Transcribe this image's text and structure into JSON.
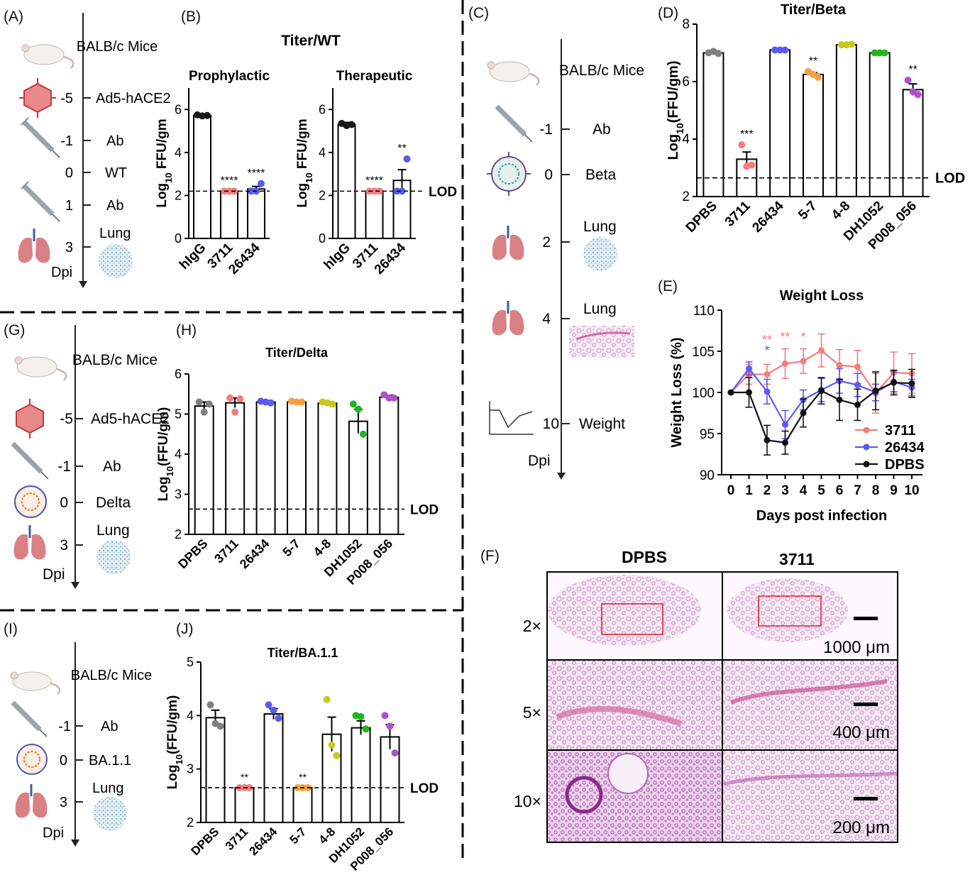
{
  "panels": {
    "A": {
      "label": "(A)",
      "timeline": [
        {
          "day": "",
          "text": "BALB/c Mice",
          "icon": "mouse-icon"
        },
        {
          "day": "-5",
          "text": "Ad5-hACE2",
          "icon": "virus-red-icon"
        },
        {
          "day": "-1",
          "text": "Ab",
          "icon": "syringe-icon"
        },
        {
          "day": "0",
          "text": "WT",
          "icon": ""
        },
        {
          "day": "1",
          "text": "Ab",
          "icon": "syringe-icon"
        },
        {
          "day": "3",
          "text": "Lung",
          "icon": "lung-icon"
        }
      ],
      "axis_label": "Dpi"
    },
    "B": {
      "label": "(B)",
      "title": "Titer/WT"
    },
    "C": {
      "label": "(C)",
      "timeline": [
        {
          "day": "",
          "text": "BALB/c Mice",
          "icon": "mouse-icon"
        },
        {
          "day": "-1",
          "text": "Ab",
          "icon": "syringe-icon"
        },
        {
          "day": "0",
          "text": "Beta",
          "icon": "virus-blue-icon"
        },
        {
          "day": "2",
          "text": "Lung",
          "icon": "lung-icon"
        },
        {
          "day": "4",
          "text": "Lung",
          "icon": "lung-icon"
        },
        {
          "day": "10",
          "text": "Weight",
          "icon": "weight-curve-icon"
        }
      ],
      "axis_label": "Dpi"
    },
    "D": {
      "label": "(D)"
    },
    "E": {
      "label": "(E)"
    },
    "F": {
      "label": "(F)",
      "columns": [
        "DPBS",
        "3711"
      ],
      "rows": [
        "2×",
        "5×",
        "10×"
      ],
      "scale_bars": [
        "1000 μm",
        "400 μm",
        "200 μm"
      ]
    },
    "G": {
      "label": "(G)",
      "timeline": [
        {
          "day": "",
          "text": "BALB/c Mice",
          "icon": "mouse-icon"
        },
        {
          "day": "-5",
          "text": "Ad5-hACE2",
          "icon": "virus-red-icon"
        },
        {
          "day": "-1",
          "text": "Ab",
          "icon": "syringe-icon"
        },
        {
          "day": "0",
          "text": "Delta",
          "icon": "virus-orange-icon"
        },
        {
          "day": "3",
          "text": "Lung",
          "icon": "lung-icon"
        }
      ],
      "axis_label": "Dpi"
    },
    "H": {
      "label": "(H)"
    },
    "I": {
      "label": "(I)",
      "timeline": [
        {
          "day": "",
          "text": "BALB/c Mice",
          "icon": "mouse-icon"
        },
        {
          "day": "-1",
          "text": "Ab",
          "icon": "syringe-icon"
        },
        {
          "day": "0",
          "text": "BA.1.1",
          "icon": "virus-orange-icon"
        },
        {
          "day": "3",
          "text": "Lung",
          "icon": "lung-icon"
        }
      ],
      "axis_label": "Dpi"
    },
    "J": {
      "label": "(J)"
    }
  },
  "chart_data": [
    {
      "id": "B1",
      "type": "bar",
      "title": "Prophylactic",
      "categories": [
        "hIgG",
        "3711",
        "26434"
      ],
      "values": [
        5.72,
        2.2,
        2.3
      ],
      "points": [
        [
          5.75,
          5.7,
          5.72
        ],
        [
          2.2,
          2.2,
          2.2
        ],
        [
          2.2,
          2.2,
          2.55
        ]
      ],
      "errors": [
        0.03,
        0.0,
        0.12
      ],
      "colors": [
        "#1a1a1a",
        "#f47c7c",
        "#5a5af0"
      ],
      "annotations": [
        "",
        "****",
        "****"
      ],
      "ylabel": "Log10 FFU/gm",
      "ylim": [
        0,
        7
      ],
      "yticks": [
        0,
        2,
        4,
        6
      ],
      "lod": 2.2,
      "lod_label": ""
    },
    {
      "id": "B2",
      "type": "bar",
      "title": "Therapeutic",
      "categories": [
        "hIgG",
        "3711",
        "26434"
      ],
      "values": [
        5.3,
        2.2,
        2.7
      ],
      "points": [
        [
          5.35,
          5.25,
          5.3
        ],
        [
          2.2,
          2.2,
          2.2
        ],
        [
          2.2,
          2.2,
          3.7
        ]
      ],
      "errors": [
        0.1,
        0.0,
        0.5
      ],
      "colors": [
        "#1a1a1a",
        "#f47c7c",
        "#5a5af0"
      ],
      "annotations": [
        "",
        "****",
        "**"
      ],
      "ylabel": "Log10 FFU/gm",
      "ylim": [
        0,
        7
      ],
      "yticks": [
        0,
        2,
        4,
        6
      ],
      "lod": 2.2,
      "lod_label": "LOD"
    },
    {
      "id": "D",
      "type": "bar",
      "title": "Titer/Beta",
      "categories": [
        "DPBS",
        "3711",
        "26434",
        "5-7",
        "4-8",
        "DH1052",
        "P008_056"
      ],
      "values": [
        7.0,
        3.3,
        7.1,
        6.25,
        7.28,
        7.0,
        5.72
      ],
      "points": [
        [
          7.0,
          7.05,
          6.98
        ],
        [
          3.8,
          3.05,
          3.1
        ],
        [
          7.1,
          7.1,
          7.1
        ],
        [
          6.35,
          6.25,
          6.15
        ],
        [
          7.28,
          7.28,
          7.3
        ],
        [
          7.0,
          7.0,
          7.0
        ],
        [
          6.05,
          5.65,
          5.55
        ]
      ],
      "errors": [
        0.05,
        0.25,
        0.03,
        0.06,
        0.02,
        0.03,
        0.2
      ],
      "colors": [
        "#808080",
        "#f47c7c",
        "#5a5af0",
        "#f5a040",
        "#c8c820",
        "#22b422",
        "#b050d0"
      ],
      "annotations": [
        "",
        "***",
        "",
        "**",
        "",
        "",
        "**"
      ],
      "ylabel": "Log10(FFU/gm)",
      "ylim": [
        2,
        8
      ],
      "yticks": [
        2,
        4,
        6,
        8
      ],
      "lod": 2.65,
      "lod_label": "LOD"
    },
    {
      "id": "E",
      "type": "line",
      "title": "Weight Loss",
      "xlabel": "Days post infection",
      "ylabel": "Weight Loss (%)",
      "x": [
        0,
        1,
        2,
        3,
        4,
        5,
        6,
        7,
        8,
        9,
        10
      ],
      "xlim": [
        0,
        10
      ],
      "ylim": [
        90,
        110
      ],
      "yticks": [
        90,
        95,
        100,
        105,
        110
      ],
      "series": [
        {
          "name": "3711",
          "color": "#f47c7c",
          "values": [
            100,
            102.2,
            102.2,
            103.5,
            103.8,
            105.1,
            103.3,
            103.1,
            99.9,
            102.4,
            102.3
          ],
          "errors": [
            0,
            1.2,
            1.2,
            1.8,
            1.5,
            2.0,
            1.9,
            2.0,
            2.4,
            2.5,
            2.4
          ]
        },
        {
          "name": "26434",
          "color": "#5a5af0",
          "values": [
            100,
            102.9,
            100.1,
            96.1,
            99.1,
            100.3,
            101.4,
            100.9,
            100.0,
            101.3,
            100.6
          ],
          "errors": [
            0,
            0.8,
            1.5,
            1.7,
            1.2,
            1.4,
            1.5,
            1.4,
            1.0,
            1.2,
            1.0
          ]
        },
        {
          "name": "DPBS",
          "color": "#111111",
          "values": [
            100,
            100.0,
            94.2,
            93.9,
            97.5,
            100.2,
            99.1,
            98.5,
            100.2,
            101.2,
            101.1
          ],
          "errors": [
            0,
            1.8,
            1.8,
            1.4,
            1.7,
            1.6,
            2.5,
            1.9,
            2.3,
            1.5,
            1.7
          ]
        }
      ],
      "annotations": [
        {
          "x": 2,
          "text": "**",
          "color": "#f47c7c"
        },
        {
          "x": 2,
          "text": "*",
          "color": "#5a5af0"
        },
        {
          "x": 3,
          "text": "**",
          "color": "#f47c7c"
        },
        {
          "x": 4,
          "text": "*",
          "color": "#f47c7c"
        }
      ],
      "legend": "bottom-right"
    },
    {
      "id": "H",
      "type": "bar",
      "title": "Titer/Delta",
      "categories": [
        "DPBS",
        "3711",
        "26434",
        "5-7",
        "4-8",
        "DH1052",
        "P008_056"
      ],
      "values": [
        5.2,
        5.28,
        5.3,
        5.3,
        5.27,
        4.82,
        5.42
      ],
      "points": [
        [
          5.3,
          5.05,
          5.25
        ],
        [
          5.4,
          5.05,
          5.38
        ],
        [
          5.32,
          5.3,
          5.28
        ],
        [
          5.32,
          5.3,
          5.3
        ],
        [
          5.3,
          5.28,
          5.25
        ],
        [
          5.25,
          5.12,
          4.5
        ],
        [
          5.48,
          5.4,
          5.4
        ]
      ],
      "errors": [
        0.1,
        0.12,
        0.03,
        0.03,
        0.03,
        0.3,
        0.05
      ],
      "colors": [
        "#808080",
        "#f47c7c",
        "#5a5af0",
        "#f5a040",
        "#c8c820",
        "#22b422",
        "#b050d0"
      ],
      "annotations": [
        "",
        "",
        "",
        "",
        "",
        "",
        ""
      ],
      "ylabel": "Log10(FFU/gm)",
      "ylim": [
        2,
        6
      ],
      "yticks": [
        2,
        3,
        4,
        5,
        6
      ],
      "lod": 2.63,
      "lod_label": "LOD"
    },
    {
      "id": "J",
      "type": "bar",
      "title": "Titer/BA.1.1",
      "categories": [
        "DPBS",
        "3711",
        "26434",
        "5-7",
        "4-8",
        "DH1052",
        "P008_056"
      ],
      "values": [
        3.96,
        2.65,
        4.03,
        2.65,
        3.65,
        3.77,
        3.6
      ],
      "points": [
        [
          4.2,
          3.85,
          3.8
        ],
        [
          2.65,
          2.65,
          2.65
        ],
        [
          4.2,
          4.1,
          3.95
        ],
        [
          2.65,
          2.65,
          2.65
        ],
        [
          4.3,
          3.45,
          3.25
        ],
        [
          4.0,
          3.98,
          3.75
        ],
        [
          4.0,
          3.8,
          3.3
        ]
      ],
      "errors": [
        0.14,
        0.0,
        0.1,
        0.0,
        0.32,
        0.13,
        0.23
      ],
      "colors": [
        "#808080",
        "#f47c7c",
        "#5a5af0",
        "#f5a040",
        "#c8c820",
        "#22b422",
        "#b050d0"
      ],
      "annotations": [
        "",
        "**",
        "",
        "**",
        "",
        "",
        ""
      ],
      "ylabel": "Log10(FFU/gm)",
      "ylim": [
        2,
        5
      ],
      "yticks": [
        2,
        3,
        4,
        5
      ],
      "lod": 2.65,
      "lod_label": "LOD"
    }
  ]
}
